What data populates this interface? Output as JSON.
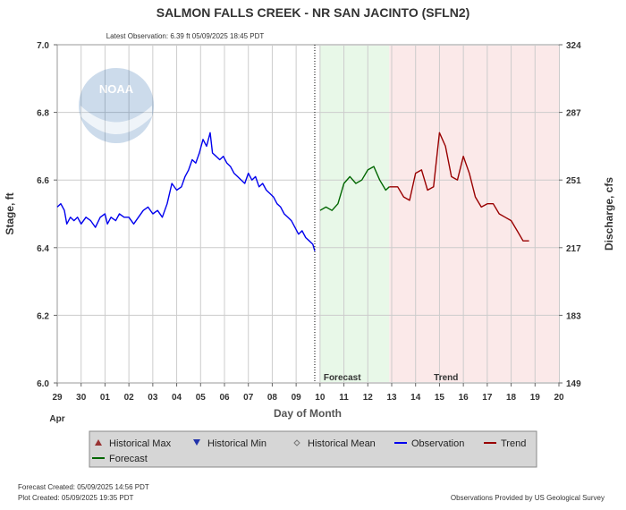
{
  "chart_data": {
    "type": "line",
    "title": "SALMON FALLS CREEK - NR SAN JACINTO  (SFLN2)",
    "subtitle": "Latest Observation: 6.39 ft 05/09/2025 18:45 PDT",
    "xlabel": "Day of Month",
    "x_month_label": "Apr",
    "ylabel": "Stage, ft",
    "y2label": "Discharge, cfs",
    "x_ticks": [
      "29",
      "30",
      "01",
      "02",
      "03",
      "04",
      "05",
      "06",
      "07",
      "08",
      "09",
      "10",
      "11",
      "12",
      "13",
      "14",
      "15",
      "16",
      "17",
      "18",
      "19",
      "20"
    ],
    "xlim": [
      0,
      21
    ],
    "ylim": [
      6.0,
      7.0
    ],
    "y_ticks": [
      "6.0",
      "6.2",
      "6.4",
      "6.6",
      "6.8",
      "7.0"
    ],
    "y2_ticks": [
      "149",
      "183",
      "217",
      "251",
      "287",
      "324"
    ],
    "grid": true,
    "regions": [
      {
        "label": "Forecast",
        "start": 11.0,
        "end": 13.9,
        "color": "#e8f8e8"
      },
      {
        "label": "Trend",
        "start": 13.9,
        "end": 21.0,
        "color": "#fbe9e9"
      }
    ],
    "latest_observation_x": 10.78,
    "series": [
      {
        "name": "Observation",
        "color": "#0000ee",
        "x": [
          0.0,
          0.15,
          0.3,
          0.4,
          0.55,
          0.7,
          0.85,
          1.0,
          1.2,
          1.4,
          1.6,
          1.8,
          2.0,
          2.1,
          2.25,
          2.45,
          2.6,
          2.8,
          3.0,
          3.2,
          3.4,
          3.6,
          3.8,
          4.0,
          4.2,
          4.4,
          4.6,
          4.8,
          5.0,
          5.2,
          5.35,
          5.5,
          5.65,
          5.8,
          5.95,
          6.1,
          6.25,
          6.4,
          6.5,
          6.65,
          6.8,
          6.95,
          7.1,
          7.25,
          7.4,
          7.55,
          7.7,
          7.85,
          8.0,
          8.15,
          8.3,
          8.45,
          8.6,
          8.75,
          8.9,
          9.05,
          9.2,
          9.35,
          9.5,
          9.65,
          9.8,
          9.95,
          10.1,
          10.25,
          10.4,
          10.55,
          10.7,
          10.78
        ],
        "y": [
          6.52,
          6.53,
          6.51,
          6.47,
          6.49,
          6.48,
          6.49,
          6.47,
          6.49,
          6.48,
          6.46,
          6.49,
          6.5,
          6.47,
          6.49,
          6.48,
          6.5,
          6.49,
          6.49,
          6.47,
          6.49,
          6.51,
          6.52,
          6.5,
          6.51,
          6.49,
          6.53,
          6.59,
          6.57,
          6.58,
          6.61,
          6.63,
          6.66,
          6.65,
          6.68,
          6.72,
          6.7,
          6.74,
          6.68,
          6.67,
          6.66,
          6.67,
          6.65,
          6.64,
          6.62,
          6.61,
          6.6,
          6.59,
          6.62,
          6.6,
          6.61,
          6.58,
          6.59,
          6.57,
          6.56,
          6.55,
          6.53,
          6.52,
          6.5,
          6.49,
          6.48,
          6.46,
          6.44,
          6.45,
          6.43,
          6.42,
          6.41,
          6.39
        ]
      },
      {
        "name": "Forecast",
        "color": "#006600",
        "x": [
          11.0,
          11.25,
          11.5,
          11.75,
          12.0,
          12.25,
          12.5,
          12.75,
          13.0,
          13.25,
          13.5,
          13.75,
          13.9
        ],
        "y": [
          6.51,
          6.52,
          6.51,
          6.53,
          6.59,
          6.61,
          6.59,
          6.6,
          6.63,
          6.64,
          6.6,
          6.57,
          6.58
        ]
      },
      {
        "name": "Trend",
        "color": "#990000",
        "x": [
          13.9,
          14.25,
          14.5,
          14.75,
          15.0,
          15.25,
          15.5,
          15.75,
          16.0,
          16.25,
          16.5,
          16.75,
          17.0,
          17.25,
          17.5,
          17.75,
          18.0,
          18.25,
          18.5,
          18.75,
          19.0,
          19.25,
          19.5,
          19.75
        ],
        "y": [
          6.58,
          6.58,
          6.55,
          6.54,
          6.62,
          6.63,
          6.57,
          6.58,
          6.74,
          6.7,
          6.61,
          6.6,
          6.67,
          6.62,
          6.55,
          6.52,
          6.53,
          6.53,
          6.5,
          6.49,
          6.48,
          6.45,
          6.42,
          6.42
        ]
      }
    ],
    "legend": {
      "placement": "bottom",
      "items": [
        {
          "label": "Historical Max",
          "marker": "triangle-up",
          "color": "#993333"
        },
        {
          "label": "Historical Min",
          "marker": "triangle-down",
          "color": "#2233aa"
        },
        {
          "label": "Historical Mean",
          "marker": "diamond",
          "color": "#777777"
        },
        {
          "label": "Observation",
          "marker": "line",
          "color": "#0000ee"
        },
        {
          "label": "Trend",
          "marker": "line",
          "color": "#990000"
        },
        {
          "label": "Forecast",
          "marker": "line",
          "color": "#006600"
        }
      ]
    }
  },
  "footer": {
    "forecast_created": "Forecast Created: 05/09/2025 14:56 PDT",
    "plot_created": "Plot Created: 05/09/2025 19:35 PDT",
    "credit": "Observations Provided by US Geological Survey"
  },
  "logo": {
    "text": "NOAA",
    "icon": "noaa-logo"
  }
}
